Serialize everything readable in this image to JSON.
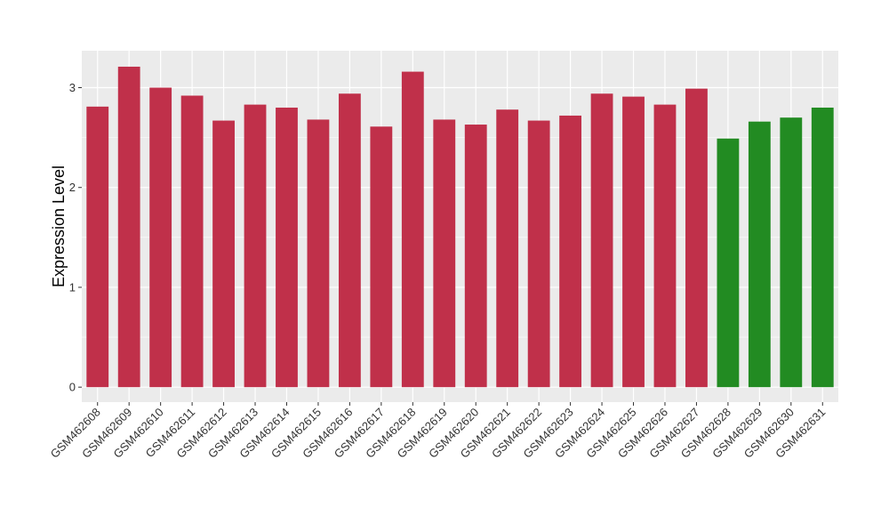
{
  "chart_data": {
    "type": "bar",
    "title": "",
    "xlabel": "",
    "ylabel": "Expression Level",
    "ylim": [
      -0.15,
      3.37
    ],
    "yticks": [
      0,
      1,
      2,
      3
    ],
    "grid": true,
    "legend": "none",
    "colors": {
      "red": "#C0304A",
      "green": "#228B22",
      "panel": "#EBEBEB",
      "grid": "#FFFFFF"
    },
    "categories": [
      "GSM462608",
      "GSM462609",
      "GSM462610",
      "GSM462611",
      "GSM462612",
      "GSM462613",
      "GSM462614",
      "GSM462615",
      "GSM462616",
      "GSM462617",
      "GSM462618",
      "GSM462619",
      "GSM462620",
      "GSM462621",
      "GSM462622",
      "GSM462623",
      "GSM462624",
      "GSM462625",
      "GSM462626",
      "GSM462627",
      "GSM462628",
      "GSM462629",
      "GSM462630",
      "GSM462631"
    ],
    "values": [
      2.81,
      3.21,
      3.0,
      2.92,
      2.67,
      2.83,
      2.8,
      2.68,
      2.94,
      2.61,
      3.16,
      2.68,
      2.63,
      2.78,
      2.67,
      2.72,
      2.94,
      2.91,
      2.83,
      2.99,
      2.49,
      2.66,
      2.7,
      2.8
    ],
    "bar_colors": [
      "red",
      "red",
      "red",
      "red",
      "red",
      "red",
      "red",
      "red",
      "red",
      "red",
      "red",
      "red",
      "red",
      "red",
      "red",
      "red",
      "red",
      "red",
      "red",
      "red",
      "green",
      "green",
      "green",
      "green"
    ]
  }
}
